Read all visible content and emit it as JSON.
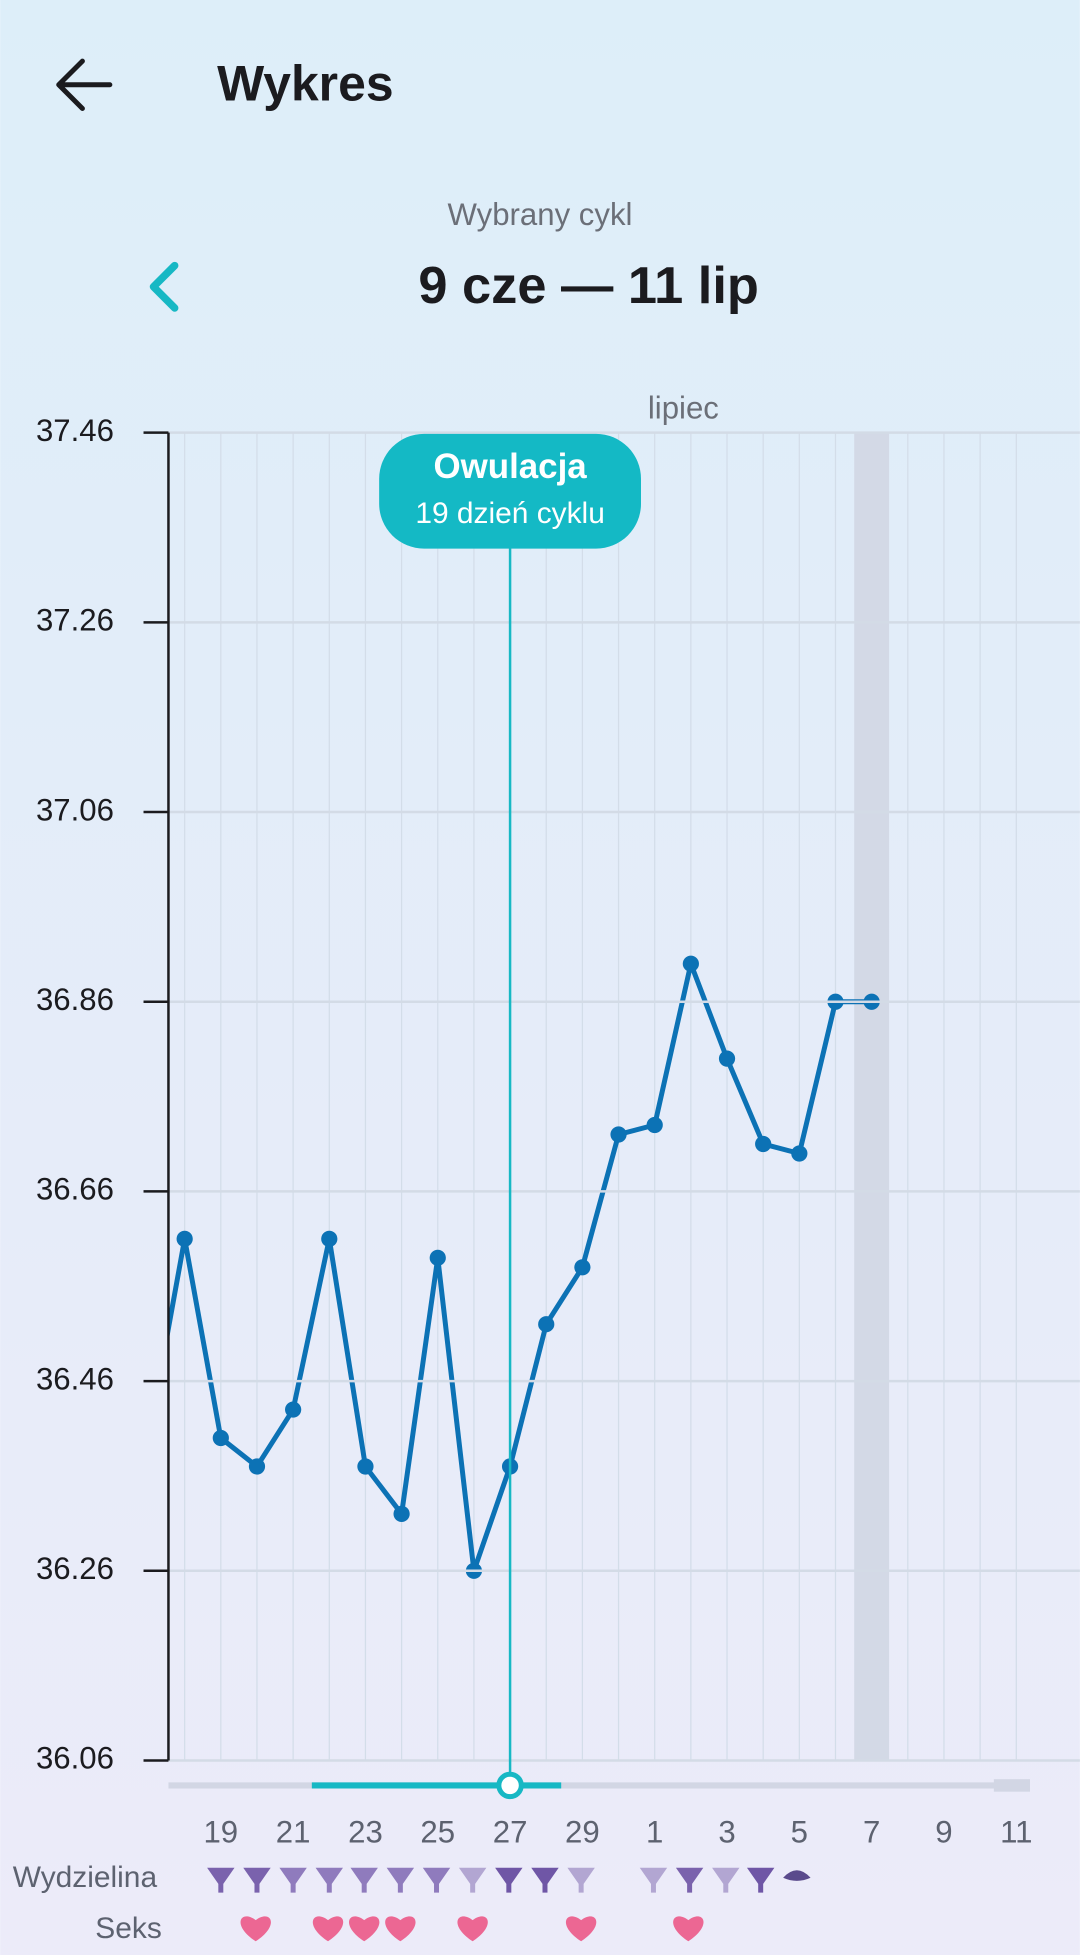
{
  "header": {
    "title": "Wykres"
  },
  "cycle": {
    "label": "Wybrany cykl",
    "range": "9 cze — 11 lip"
  },
  "chart_data": {
    "type": "line",
    "month_label": "lipiec",
    "categories": [
      null,
      null,
      19,
      null,
      21,
      null,
      23,
      null,
      25,
      null,
      27,
      null,
      29,
      null,
      1,
      null,
      3,
      null,
      5,
      null,
      7,
      null,
      9,
      null,
      11
    ],
    "values": [
      36.4,
      36.61,
      36.4,
      36.37,
      36.43,
      36.61,
      36.37,
      36.32,
      36.59,
      36.26,
      36.37,
      36.52,
      36.58,
      36.72,
      36.73,
      36.9,
      36.8,
      36.71,
      36.7,
      36.86,
      36.86,
      null,
      null,
      null,
      null
    ],
    "color": "#0c72b5",
    "ylim": [
      36.06,
      37.46
    ],
    "yticks": [
      36.06,
      36.26,
      36.46,
      36.66,
      36.86,
      37.06,
      37.26,
      37.46
    ],
    "grid": true,
    "annotations": [
      {
        "x": 27,
        "title": "Owulacja",
        "text": "19 dzień cyklu"
      }
    ],
    "rows": {
      "discharge": "Wydzielina",
      "sex": "Seks"
    }
  }
}
